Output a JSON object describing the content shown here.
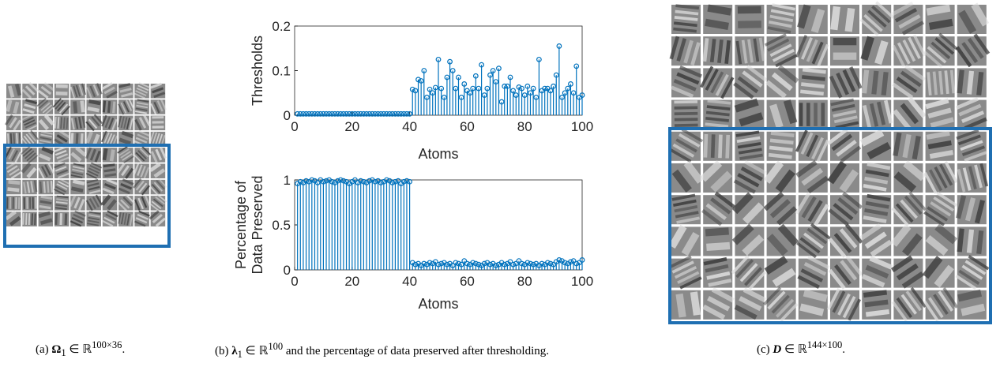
{
  "chart_data": [
    {
      "type": "stem",
      "ylabel": [
        "Thresholds"
      ],
      "xlabel": "Atoms",
      "color": "#0072bd",
      "x": [
        1,
        2,
        3,
        4,
        5,
        6,
        7,
        8,
        9,
        10,
        11,
        12,
        13,
        14,
        15,
        16,
        17,
        18,
        19,
        20,
        21,
        22,
        23,
        24,
        25,
        26,
        27,
        28,
        29,
        30,
        31,
        32,
        33,
        34,
        35,
        36,
        37,
        38,
        39,
        40,
        41,
        42,
        43,
        44,
        45,
        46,
        47,
        48,
        49,
        50,
        51,
        52,
        53,
        54,
        55,
        56,
        57,
        58,
        59,
        60,
        61,
        62,
        63,
        64,
        65,
        66,
        67,
        68,
        69,
        70,
        71,
        72,
        73,
        74,
        75,
        76,
        77,
        78,
        79,
        80,
        81,
        82,
        83,
        84,
        85,
        86,
        87,
        88,
        89,
        90,
        91,
        92,
        93,
        94,
        95,
        96,
        97,
        98,
        99,
        100
      ],
      "values": [
        0.003,
        0.003,
        0.003,
        0.003,
        0.003,
        0.003,
        0.003,
        0.003,
        0.003,
        0.003,
        0.003,
        0.003,
        0.003,
        0.003,
        0.003,
        0.003,
        0.003,
        0.003,
        0.003,
        0.003,
        0.003,
        0.003,
        0.003,
        0.003,
        0.003,
        0.003,
        0.003,
        0.003,
        0.003,
        0.003,
        0.003,
        0.003,
        0.003,
        0.003,
        0.003,
        0.003,
        0.003,
        0.003,
        0.003,
        0.003,
        0.058,
        0.055,
        0.08,
        0.077,
        0.1,
        0.04,
        0.058,
        0.05,
        0.062,
        0.125,
        0.06,
        0.04,
        0.085,
        0.12,
        0.1,
        0.06,
        0.085,
        0.04,
        0.07,
        0.055,
        0.05,
        0.06,
        0.088,
        0.06,
        0.113,
        0.045,
        0.06,
        0.09,
        0.1,
        0.075,
        0.105,
        0.03,
        0.065,
        0.065,
        0.085,
        0.055,
        0.045,
        0.063,
        0.06,
        0.045,
        0.065,
        0.05,
        0.06,
        0.04,
        0.125,
        0.055,
        0.06,
        0.06,
        0.055,
        0.065,
        0.09,
        0.155,
        0.04,
        0.05,
        0.06,
        0.07,
        0.05,
        0.11,
        0.04,
        0.045
      ],
      "xlim": [
        0,
        100
      ],
      "xticks": [
        0,
        20,
        40,
        60,
        80,
        100
      ],
      "ylim": [
        0,
        0.2
      ],
      "yticks": [
        0,
        0.1,
        0.2
      ]
    },
    {
      "type": "stem",
      "ylabel": [
        "Percentage of",
        "Data Preserved"
      ],
      "xlabel": "Atoms",
      "color": "#0072bd",
      "x": [
        1,
        2,
        3,
        4,
        5,
        6,
        7,
        8,
        9,
        10,
        11,
        12,
        13,
        14,
        15,
        16,
        17,
        18,
        19,
        20,
        21,
        22,
        23,
        24,
        25,
        26,
        27,
        28,
        29,
        30,
        31,
        32,
        33,
        34,
        35,
        36,
        37,
        38,
        39,
        40,
        41,
        42,
        43,
        44,
        45,
        46,
        47,
        48,
        49,
        50,
        51,
        52,
        53,
        54,
        55,
        56,
        57,
        58,
        59,
        60,
        61,
        62,
        63,
        64,
        65,
        66,
        67,
        68,
        69,
        70,
        71,
        72,
        73,
        74,
        75,
        76,
        77,
        78,
        79,
        80,
        81,
        82,
        83,
        84,
        85,
        86,
        87,
        88,
        89,
        90,
        91,
        92,
        93,
        94,
        95,
        96,
        97,
        98,
        99,
        100
      ],
      "values": [
        0.96,
        0.98,
        0.97,
        0.99,
        0.98,
        1.0,
        0.99,
        0.97,
        1.0,
        0.98,
        0.99,
        1.0,
        0.98,
        0.97,
        0.99,
        1.0,
        0.99,
        0.98,
        0.96,
        0.98,
        1.0,
        0.97,
        0.99,
        0.98,
        0.97,
        0.99,
        1.0,
        0.98,
        0.99,
        0.97,
        0.98,
        1.0,
        0.99,
        0.97,
        0.98,
        0.99,
        0.96,
        0.98,
        0.99,
        0.98,
        0.08,
        0.06,
        0.07,
        0.05,
        0.07,
        0.06,
        0.08,
        0.07,
        0.09,
        0.06,
        0.07,
        0.08,
        0.06,
        0.07,
        0.05,
        0.08,
        0.07,
        0.06,
        0.1,
        0.07,
        0.06,
        0.08,
        0.07,
        0.06,
        0.05,
        0.07,
        0.08,
        0.06,
        0.07,
        0.05,
        0.06,
        0.08,
        0.06,
        0.07,
        0.09,
        0.06,
        0.07,
        0.1,
        0.07,
        0.06,
        0.08,
        0.07,
        0.06,
        0.07,
        0.05,
        0.07,
        0.06,
        0.08,
        0.07,
        0.06,
        0.09,
        0.11,
        0.1,
        0.08,
        0.07,
        0.09,
        0.1,
        0.07,
        0.08,
        0.11
      ],
      "xlim": [
        0,
        100
      ],
      "xticks": [
        0,
        20,
        40,
        60,
        80,
        100
      ],
      "ylim": [
        0,
        1
      ],
      "yticks": [
        0,
        0.5,
        1
      ]
    }
  ],
  "captions": [
    {
      "label": "(a)",
      "symbol": "Ω",
      "sub": "1",
      "set": "∈ ℝ",
      "sup": "100×36",
      "end": "."
    },
    {
      "label": "(b)",
      "symbol": "λ",
      "sub": "1",
      "set": "∈ ℝ",
      "sup": "100",
      "end": "and the percentage of data preserved after thresholding."
    },
    {
      "label": "(c)",
      "symbol": "D",
      "set": "∈ ℝ",
      "sup": "144×100",
      "end": "."
    }
  ]
}
